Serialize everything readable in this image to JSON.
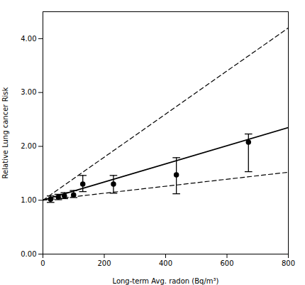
{
  "chart_data": {
    "type": "scatter",
    "xlabel": "Long-term Avg. radon (Bq/m³)",
    "ylabel": "Relative Lung cancer Risk",
    "xlim": [
      0,
      800
    ],
    "ylim": [
      0.0,
      4.5
    ],
    "xticks": [
      0,
      200,
      400,
      600,
      800
    ],
    "yticks": [
      {
        "value": 0.0,
        "label": "0.00"
      },
      {
        "value": 1.0,
        "label": "1.00"
      },
      {
        "value": 2.0,
        "label": "2.00"
      },
      {
        "value": 3.0,
        "label": "3.00"
      },
      {
        "value": 4.0,
        "label": "4.00"
      }
    ],
    "series": [
      {
        "type": "line",
        "line_style": "dashed",
        "color": "#000000",
        "x": [
          0,
          800
        ],
        "values": [
          1.0,
          4.2
        ]
      },
      {
        "type": "line",
        "line_style": "dashed",
        "color": "#000000",
        "x": [
          0,
          800
        ],
        "values": [
          1.0,
          1.52
        ]
      },
      {
        "type": "line",
        "line_style": "solid",
        "color": "#000000",
        "x": [
          0,
          800
        ],
        "values": [
          1.0,
          2.35
        ]
      },
      {
        "type": "scatter",
        "marker": "circle",
        "color": "#000000",
        "x": [
          25,
          50,
          70,
          100,
          130,
          230,
          435,
          670
        ],
        "values": [
          1.02,
          1.06,
          1.08,
          1.1,
          1.3,
          1.3,
          1.47,
          2.08
        ],
        "yerr_low": [
          0.06,
          0.05,
          0.05,
          0.05,
          0.14,
          0.17,
          0.35,
          0.55
        ],
        "yerr_high": [
          0.06,
          0.05,
          0.06,
          0.08,
          0.16,
          0.16,
          0.32,
          0.15
        ]
      }
    ]
  }
}
